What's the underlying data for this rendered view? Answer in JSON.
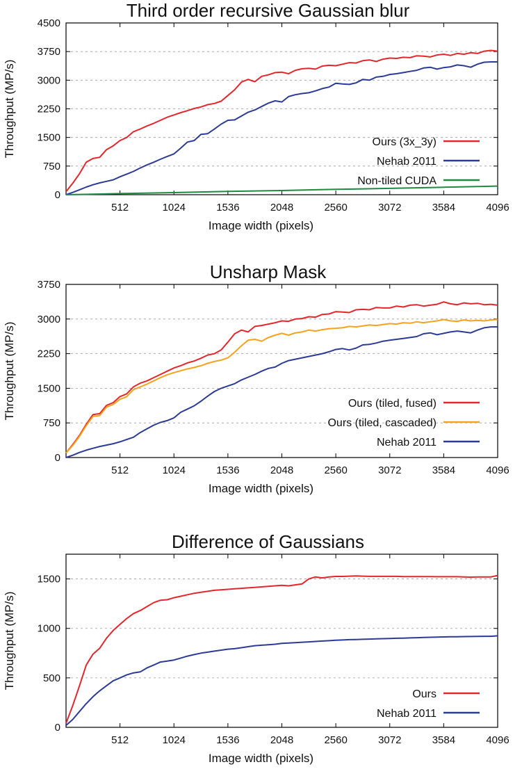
{
  "chart_data": [
    {
      "type": "line",
      "title": "Third order recursive Gaussian blur",
      "xlabel": "Image width (pixels)",
      "ylabel": "Throughput (MP/s)",
      "xlim": [
        0,
        4096
      ],
      "ylim": [
        0,
        4500
      ],
      "xticks": [
        512,
        1024,
        1536,
        2048,
        2560,
        3072,
        3584,
        4096
      ],
      "yticks": [
        0,
        750,
        1500,
        2250,
        3000,
        3750,
        4500
      ],
      "grid": "horizontal dashed",
      "legend_position": "right",
      "series": [
        {
          "name": "Ours (3x_3y)",
          "color": "#e3262b",
          "x": [
            0,
            64,
            128,
            192,
            256,
            320,
            384,
            448,
            512,
            576,
            640,
            704,
            768,
            832,
            896,
            960,
            1024,
            1088,
            1152,
            1216,
            1280,
            1344,
            1408,
            1472,
            1536,
            1600,
            1664,
            1728,
            1792,
            1856,
            1920,
            1984,
            2048,
            2112,
            2176,
            2240,
            2304,
            2368,
            2432,
            2496,
            2560,
            2624,
            2688,
            2752,
            2816,
            2880,
            2944,
            3008,
            3072,
            3136,
            3200,
            3264,
            3328,
            3392,
            3456,
            3520,
            3584,
            3648,
            3712,
            3776,
            3840,
            3904,
            3968,
            4032,
            4096
          ],
          "values": [
            80,
            300,
            550,
            850,
            950,
            980,
            1180,
            1280,
            1420,
            1500,
            1650,
            1720,
            1800,
            1870,
            1950,
            2030,
            2090,
            2150,
            2200,
            2260,
            2300,
            2360,
            2390,
            2450,
            2600,
            2750,
            2950,
            3020,
            2960,
            3100,
            3140,
            3200,
            3210,
            3170,
            3260,
            3300,
            3310,
            3290,
            3370,
            3390,
            3380,
            3420,
            3460,
            3450,
            3510,
            3530,
            3490,
            3550,
            3580,
            3570,
            3600,
            3590,
            3640,
            3630,
            3610,
            3660,
            3680,
            3650,
            3700,
            3680,
            3720,
            3700,
            3760,
            3780,
            3760
          ]
        },
        {
          "name": "Nehab 2011",
          "color": "#2b3a94",
          "x": [
            0,
            64,
            128,
            192,
            256,
            320,
            384,
            448,
            512,
            576,
            640,
            704,
            768,
            832,
            896,
            960,
            1024,
            1088,
            1152,
            1216,
            1280,
            1344,
            1408,
            1472,
            1536,
            1600,
            1664,
            1728,
            1792,
            1856,
            1920,
            1984,
            2048,
            2112,
            2176,
            2240,
            2304,
            2368,
            2432,
            2496,
            2560,
            2624,
            2688,
            2752,
            2816,
            2880,
            2944,
            3008,
            3072,
            3136,
            3200,
            3264,
            3328,
            3392,
            3456,
            3520,
            3584,
            3648,
            3712,
            3776,
            3840,
            3904,
            3968,
            4032,
            4096
          ],
          "values": [
            0,
            60,
            130,
            200,
            260,
            310,
            350,
            390,
            470,
            540,
            610,
            700,
            780,
            850,
            930,
            1000,
            1070,
            1220,
            1380,
            1420,
            1580,
            1600,
            1720,
            1850,
            1950,
            1960,
            2060,
            2160,
            2220,
            2310,
            2400,
            2460,
            2430,
            2570,
            2620,
            2650,
            2670,
            2720,
            2780,
            2820,
            2920,
            2900,
            2890,
            2930,
            3020,
            3000,
            3080,
            3100,
            3150,
            3170,
            3200,
            3230,
            3260,
            3320,
            3340,
            3290,
            3330,
            3350,
            3400,
            3380,
            3340,
            3420,
            3470,
            3480,
            3480
          ]
        },
        {
          "name": "Non-tiled CUDA",
          "color": "#1f8a3f",
          "x": [
            0,
            512,
            1024,
            1536,
            2048,
            2560,
            3072,
            3584,
            4096
          ],
          "values": [
            0,
            30,
            55,
            85,
            110,
            140,
            165,
            195,
            225
          ]
        }
      ]
    },
    {
      "type": "line",
      "title": "Unsharp Mask",
      "xlabel": "Image width (pixels)",
      "ylabel": "Throughput (MP/s)",
      "xlim": [
        0,
        4096
      ],
      "ylim": [
        0,
        3750
      ],
      "xticks": [
        512,
        1024,
        1536,
        2048,
        2560,
        3072,
        3584,
        4096
      ],
      "yticks": [
        0,
        750,
        1500,
        2250,
        3000,
        3750
      ],
      "grid": "horizontal dashed",
      "legend_position": "right",
      "series": [
        {
          "name": "Ours (tiled, fused)",
          "color": "#e3262b",
          "x": [
            0,
            64,
            128,
            192,
            256,
            320,
            384,
            448,
            512,
            576,
            640,
            704,
            768,
            832,
            896,
            960,
            1024,
            1088,
            1152,
            1216,
            1280,
            1344,
            1408,
            1472,
            1536,
            1600,
            1664,
            1728,
            1792,
            1856,
            1920,
            1984,
            2048,
            2112,
            2176,
            2240,
            2304,
            2368,
            2432,
            2496,
            2560,
            2624,
            2688,
            2752,
            2816,
            2880,
            2944,
            3008,
            3072,
            3136,
            3200,
            3264,
            3328,
            3392,
            3456,
            3520,
            3584,
            3648,
            3712,
            3776,
            3840,
            3904,
            3968,
            4032,
            4096
          ],
          "values": [
            100,
            280,
            480,
            720,
            930,
            950,
            1130,
            1190,
            1320,
            1380,
            1530,
            1610,
            1660,
            1730,
            1800,
            1870,
            1940,
            1990,
            2050,
            2090,
            2150,
            2220,
            2250,
            2330,
            2500,
            2680,
            2760,
            2720,
            2840,
            2860,
            2890,
            2920,
            2960,
            2950,
            3000,
            3010,
            3050,
            3040,
            3100,
            3110,
            3160,
            3150,
            3140,
            3200,
            3210,
            3200,
            3250,
            3240,
            3240,
            3280,
            3260,
            3300,
            3310,
            3280,
            3300,
            3320,
            3370,
            3330,
            3310,
            3350,
            3330,
            3340,
            3310,
            3320,
            3300
          ]
        },
        {
          "name": "Ours (tiled, cascaded)",
          "color": "#f5a31c",
          "x": [
            0,
            64,
            128,
            192,
            256,
            320,
            384,
            448,
            512,
            576,
            640,
            704,
            768,
            832,
            896,
            960,
            1024,
            1088,
            1152,
            1216,
            1280,
            1344,
            1408,
            1472,
            1536,
            1600,
            1664,
            1728,
            1792,
            1856,
            1920,
            1984,
            2048,
            2112,
            2176,
            2240,
            2304,
            2368,
            2432,
            2496,
            2560,
            2624,
            2688,
            2752,
            2816,
            2880,
            2944,
            3008,
            3072,
            3136,
            3200,
            3264,
            3328,
            3392,
            3456,
            3520,
            3584,
            3648,
            3712,
            3776,
            3840,
            3904,
            3968,
            4032,
            4096
          ],
          "values": [
            100,
            260,
            460,
            690,
            890,
            910,
            1090,
            1150,
            1260,
            1320,
            1470,
            1530,
            1590,
            1660,
            1730,
            1790,
            1840,
            1880,
            1920,
            1950,
            1990,
            2040,
            2080,
            2110,
            2160,
            2280,
            2420,
            2540,
            2560,
            2520,
            2600,
            2650,
            2690,
            2650,
            2700,
            2720,
            2760,
            2740,
            2770,
            2790,
            2800,
            2810,
            2840,
            2830,
            2850,
            2870,
            2860,
            2880,
            2900,
            2890,
            2920,
            2910,
            2940,
            2920,
            2940,
            2960,
            2990,
            2960,
            2950,
            2980,
            2960,
            2970,
            2960,
            2980,
            2990
          ]
        },
        {
          "name": "Nehab 2011",
          "color": "#2b3a94",
          "x": [
            0,
            64,
            128,
            192,
            256,
            320,
            384,
            448,
            512,
            576,
            640,
            704,
            768,
            832,
            896,
            960,
            1024,
            1088,
            1152,
            1216,
            1280,
            1344,
            1408,
            1472,
            1536,
            1600,
            1664,
            1728,
            1792,
            1856,
            1920,
            1984,
            2048,
            2112,
            2176,
            2240,
            2304,
            2368,
            2432,
            2496,
            2560,
            2624,
            2688,
            2752,
            2816,
            2880,
            2944,
            3008,
            3072,
            3136,
            3200,
            3264,
            3328,
            3392,
            3456,
            3520,
            3584,
            3648,
            3712,
            3776,
            3840,
            3904,
            3968,
            4032,
            4096
          ],
          "values": [
            0,
            50,
            110,
            160,
            200,
            240,
            270,
            300,
            340,
            390,
            440,
            540,
            620,
            700,
            760,
            800,
            860,
            980,
            1050,
            1120,
            1220,
            1330,
            1430,
            1500,
            1550,
            1600,
            1680,
            1740,
            1800,
            1870,
            1930,
            1960,
            2040,
            2100,
            2130,
            2160,
            2190,
            2220,
            2250,
            2290,
            2340,
            2360,
            2330,
            2370,
            2440,
            2450,
            2480,
            2520,
            2540,
            2560,
            2580,
            2600,
            2620,
            2680,
            2700,
            2660,
            2690,
            2720,
            2740,
            2720,
            2700,
            2760,
            2810,
            2830,
            2830
          ]
        }
      ]
    },
    {
      "type": "line",
      "title": "Difference of Gaussians",
      "xlabel": "Image width (pixels)",
      "ylabel": "Throughput (MP/s)",
      "xlim": [
        0,
        4096
      ],
      "ylim": [
        0,
        1750
      ],
      "xticks": [
        512,
        1024,
        1536,
        2048,
        2560,
        3072,
        3584,
        4096
      ],
      "yticks": [
        0,
        500,
        1000,
        1500
      ],
      "grid": "horizontal dashed",
      "legend_position": "bottom-right",
      "series": [
        {
          "name": "Ours",
          "color": "#e3262b",
          "x": [
            0,
            64,
            128,
            192,
            256,
            320,
            384,
            448,
            512,
            576,
            640,
            704,
            768,
            832,
            896,
            960,
            1024,
            1088,
            1152,
            1216,
            1280,
            1344,
            1408,
            1472,
            1536,
            1600,
            1664,
            1728,
            1792,
            1856,
            1920,
            1984,
            2048,
            2112,
            2176,
            2240,
            2304,
            2368,
            2432,
            2496,
            2560,
            2624,
            2688,
            2752,
            2816,
            2880,
            2944,
            3008,
            3072,
            3136,
            3200,
            3264,
            3328,
            3392,
            3456,
            3520,
            3584,
            3648,
            3712,
            3776,
            3840,
            3904,
            3968,
            4032,
            4096
          ],
          "values": [
            40,
            220,
            420,
            630,
            740,
            800,
            900,
            980,
            1040,
            1100,
            1150,
            1180,
            1220,
            1260,
            1285,
            1290,
            1310,
            1325,
            1340,
            1355,
            1365,
            1375,
            1385,
            1390,
            1395,
            1400,
            1405,
            1410,
            1415,
            1420,
            1425,
            1430,
            1435,
            1430,
            1440,
            1450,
            1500,
            1520,
            1510,
            1520,
            1525,
            1525,
            1528,
            1530,
            1528,
            1526,
            1526,
            1526,
            1526,
            1526,
            1524,
            1524,
            1524,
            1524,
            1524,
            1522,
            1522,
            1522,
            1522,
            1520,
            1518,
            1520,
            1520,
            1520,
            1535
          ]
        },
        {
          "name": "Nehab 2011",
          "color": "#2b3a94",
          "x": [
            0,
            64,
            128,
            192,
            256,
            320,
            384,
            448,
            512,
            576,
            640,
            704,
            768,
            832,
            896,
            960,
            1024,
            1088,
            1152,
            1216,
            1280,
            1344,
            1408,
            1472,
            1536,
            1600,
            1664,
            1728,
            1792,
            1856,
            1920,
            1984,
            2048,
            2112,
            2176,
            2240,
            2304,
            2368,
            2432,
            2496,
            2560,
            2624,
            2688,
            2752,
            2816,
            2880,
            2944,
            3008,
            3072,
            3136,
            3200,
            3264,
            3328,
            3392,
            3456,
            3520,
            3584,
            3648,
            3712,
            3776,
            3840,
            3904,
            3968,
            4032,
            4096
          ],
          "values": [
            20,
            80,
            160,
            240,
            310,
            370,
            420,
            470,
            500,
            530,
            550,
            560,
            600,
            630,
            660,
            670,
            680,
            700,
            720,
            735,
            750,
            760,
            770,
            780,
            790,
            795,
            805,
            815,
            825,
            830,
            835,
            840,
            848,
            852,
            856,
            860,
            864,
            868,
            872,
            876,
            880,
            883,
            886,
            888,
            890,
            892,
            894,
            896,
            898,
            900,
            902,
            904,
            906,
            908,
            910,
            912,
            914,
            915,
            916,
            917,
            918,
            919,
            920,
            920,
            925
          ]
        }
      ]
    }
  ]
}
